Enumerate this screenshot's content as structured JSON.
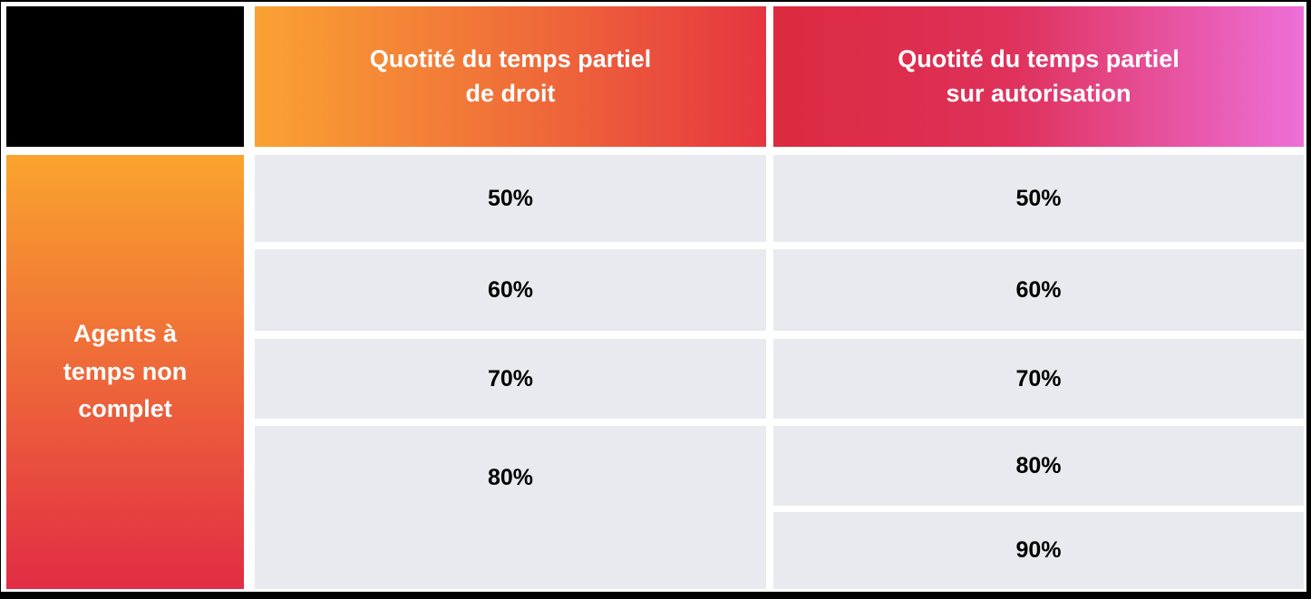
{
  "table": {
    "corner_label": "",
    "row_group_label": "Agents à\ntemps non\ncomplet",
    "columns": [
      {
        "header": "Quotité du temps partiel\nde droit",
        "values": [
          "50%",
          "60%",
          "70%",
          "80%"
        ]
      },
      {
        "header": "Quotité du temps partiel\nsur autorisation",
        "values": [
          "50%",
          "60%",
          "70%",
          "80%",
          "90%"
        ]
      }
    ]
  },
  "colors": {
    "header_droit_gradient_start": "#FAA233",
    "header_droit_gradient_end": "#E63540",
    "header_autorisation_gradient_start": "#DC2A3E",
    "header_autorisation_gradient_end": "#EE6FD9",
    "row_label_gradient_start": "#FAA42E",
    "row_label_gradient_end": "#E22C44",
    "value_cell_background": "#E9EAEF",
    "corner_cell_background": "#000000",
    "header_text": "#FFFFFF",
    "value_text": "#000000",
    "frame": "#000000"
  }
}
